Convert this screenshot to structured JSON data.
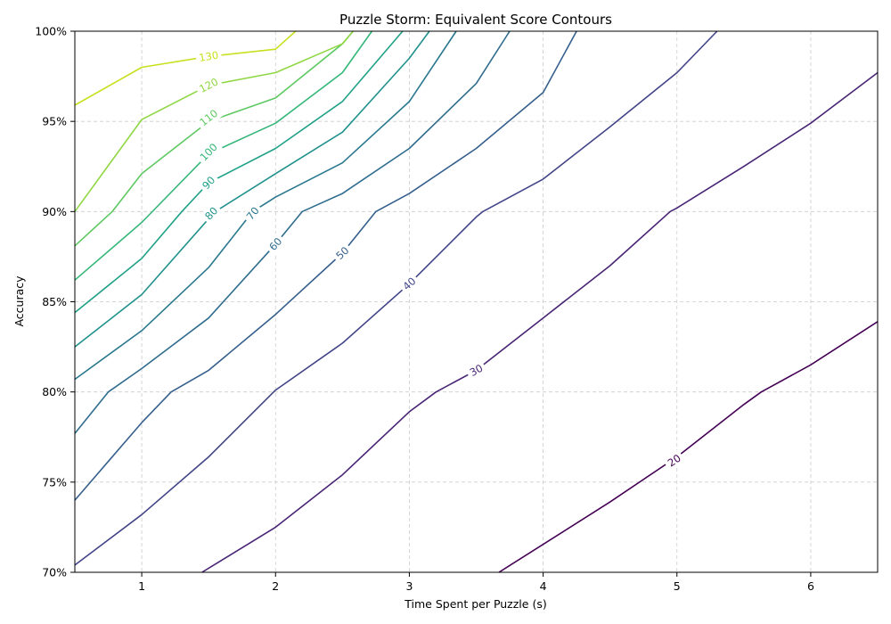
{
  "chart_data": {
    "type": "contour",
    "title": "Puzzle Storm: Equivalent Score Contours",
    "xlabel": "Time Spent per Puzzle (s)",
    "ylabel": "Accuracy",
    "xlim": [
      0.5,
      6.5
    ],
    "ylim": [
      0.7,
      1.0
    ],
    "x_ticks": [
      1,
      2,
      3,
      4,
      5,
      6
    ],
    "x_tick_labels": [
      "1",
      "2",
      "3",
      "4",
      "5",
      "6"
    ],
    "y_ticks": [
      0.7,
      0.75,
      0.8,
      0.85,
      0.9,
      0.95,
      1.0
    ],
    "y_tick_labels": [
      "70%",
      "75%",
      "80%",
      "85%",
      "90%",
      "95%",
      "100%"
    ],
    "grid": true,
    "contours": [
      {
        "level": 20,
        "label": "20",
        "color": "#440154",
        "points": [
          [
            3.67,
            0.7
          ],
          [
            4.5,
            0.739
          ],
          [
            5.0,
            0.764
          ],
          [
            5.5,
            0.793
          ],
          [
            5.63,
            0.8
          ],
          [
            6.0,
            0.815
          ],
          [
            6.5,
            0.839
          ]
        ],
        "label_at": [
          4.98,
          0.762
        ]
      },
      {
        "level": 30,
        "label": "30",
        "color": "#482475",
        "points": [
          [
            1.45,
            0.7
          ],
          [
            2.0,
            0.725
          ],
          [
            2.5,
            0.754
          ],
          [
            3.0,
            0.789
          ],
          [
            3.2,
            0.8
          ],
          [
            3.5,
            0.812
          ],
          [
            4.0,
            0.841
          ],
          [
            4.5,
            0.87
          ],
          [
            4.95,
            0.9
          ],
          [
            5.0,
            0.902
          ],
          [
            5.5,
            0.925
          ],
          [
            6.0,
            0.949
          ],
          [
            6.5,
            0.977
          ]
        ],
        "label_at": [
          3.5,
          0.812
        ]
      },
      {
        "level": 40,
        "label": "40",
        "color": "#414487",
        "points": [
          [
            0.5,
            0.704
          ],
          [
            1.0,
            0.732
          ],
          [
            1.5,
            0.764
          ],
          [
            2.0,
            0.801
          ],
          [
            2.5,
            0.827
          ],
          [
            3.0,
            0.86
          ],
          [
            3.5,
            0.897
          ],
          [
            3.55,
            0.9
          ],
          [
            4.0,
            0.918
          ],
          [
            4.5,
            0.947
          ],
          [
            5.0,
            0.977
          ],
          [
            5.3,
            1.0
          ]
        ],
        "label_at": [
          3.0,
          0.86
        ]
      },
      {
        "level": 50,
        "label": "50",
        "color": "#355f8d",
        "points": [
          [
            0.5,
            0.74
          ],
          [
            1.0,
            0.783
          ],
          [
            1.22,
            0.8
          ],
          [
            1.5,
            0.812
          ],
          [
            2.0,
            0.843
          ],
          [
            2.5,
            0.877
          ],
          [
            2.75,
            0.9
          ],
          [
            3.0,
            0.91
          ],
          [
            3.5,
            0.935
          ],
          [
            4.0,
            0.966
          ],
          [
            4.25,
            1.0
          ]
        ],
        "label_at": [
          2.5,
          0.877
        ]
      },
      {
        "level": 60,
        "label": "60",
        "color": "#2f6c8e",
        "points": [
          [
            0.5,
            0.777
          ],
          [
            0.75,
            0.8
          ],
          [
            1.0,
            0.813
          ],
          [
            1.5,
            0.841
          ],
          [
            2.0,
            0.882
          ],
          [
            2.2,
            0.9
          ],
          [
            2.5,
            0.91
          ],
          [
            3.0,
            0.935
          ],
          [
            3.5,
            0.971
          ],
          [
            3.75,
            1.0
          ]
        ],
        "label_at": [
          2.0,
          0.882
        ]
      },
      {
        "level": 70,
        "label": "70",
        "color": "#2a788e",
        "points": [
          [
            0.5,
            0.807
          ],
          [
            1.0,
            0.834
          ],
          [
            1.5,
            0.869
          ],
          [
            1.83,
            0.9
          ],
          [
            2.0,
            0.908
          ],
          [
            2.5,
            0.927
          ],
          [
            3.0,
            0.961
          ],
          [
            3.35,
            1.0
          ]
        ],
        "label_at": [
          1.83,
          0.899
        ]
      },
      {
        "level": 80,
        "label": "80",
        "color": "#21918c",
        "points": [
          [
            0.5,
            0.825
          ],
          [
            1.0,
            0.854
          ],
          [
            1.5,
            0.896
          ],
          [
            1.55,
            0.9
          ],
          [
            2.0,
            0.921
          ],
          [
            2.5,
            0.944
          ],
          [
            3.0,
            0.985
          ],
          [
            3.15,
            1.0
          ]
        ],
        "label_at": [
          1.52,
          0.899
        ]
      },
      {
        "level": 90,
        "label": "90",
        "color": "#1fa187",
        "points": [
          [
            0.5,
            0.844
          ],
          [
            1.0,
            0.874
          ],
          [
            1.3,
            0.9
          ],
          [
            1.5,
            0.916
          ],
          [
            2.0,
            0.935
          ],
          [
            2.5,
            0.961
          ],
          [
            2.95,
            1.0
          ]
        ],
        "label_at": [
          1.5,
          0.916
        ]
      },
      {
        "level": 100,
        "label": "100",
        "color": "#35b779",
        "points": [
          [
            0.5,
            0.862
          ],
          [
            1.0,
            0.894
          ],
          [
            1.5,
            0.932
          ],
          [
            2.0,
            0.949
          ],
          [
            2.5,
            0.977
          ],
          [
            2.72,
            1.0
          ]
        ],
        "label_at": [
          1.5,
          0.933
        ]
      },
      {
        "level": 110,
        "label": "110",
        "color": "#5ec962",
        "points": [
          [
            0.5,
            0.881
          ],
          [
            0.78,
            0.9
          ],
          [
            1.0,
            0.921
          ],
          [
            1.5,
            0.95
          ],
          [
            2.0,
            0.963
          ],
          [
            2.5,
            0.993
          ],
          [
            2.58,
            1.0
          ]
        ],
        "label_at": [
          1.5,
          0.952
        ]
      },
      {
        "level": 120,
        "label": "120",
        "color": "#90d743",
        "points": [
          [
            0.5,
            0.9
          ],
          [
            1.0,
            0.951
          ],
          [
            1.5,
            0.97
          ],
          [
            2.0,
            0.977
          ],
          [
            2.5,
            0.993
          ],
          [
            2.58,
            1.0
          ]
        ],
        "label_at": [
          1.5,
          0.97
        ]
      },
      {
        "level": 130,
        "label": "130",
        "color": "#c8e020",
        "points": [
          [
            0.5,
            0.959
          ],
          [
            1.0,
            0.98
          ],
          [
            1.5,
            0.986
          ],
          [
            2.0,
            0.99
          ],
          [
            2.15,
            1.0
          ]
        ],
        "label_at": [
          1.5,
          0.986
        ]
      }
    ]
  }
}
